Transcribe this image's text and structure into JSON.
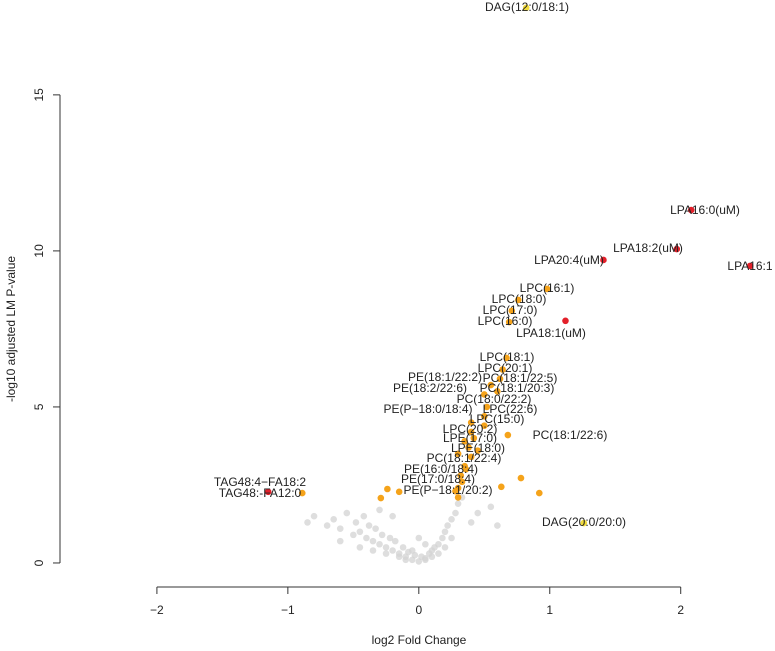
{
  "chart_data": {
    "type": "scatter",
    "xlabel": "log2 Fold Change",
    "ylabel": "-log10 adjusted LM P-value",
    "xlim": [
      -2.74,
      2.72
    ],
    "ylim": [
      -0.77,
      18.04
    ],
    "xticks": [
      {
        "value": -2,
        "label": "−2"
      },
      {
        "value": -1,
        "label": "−1"
      },
      0,
      1,
      2
    ],
    "yticks": [
      0,
      5,
      10,
      15
    ],
    "series": [
      {
        "color": "#d3d3d3",
        "x": [
          -0.85,
          -0.8,
          -0.7,
          -0.65,
          -0.6,
          -0.55,
          -0.5,
          -0.48,
          -0.45,
          -0.42,
          -0.4,
          -0.38,
          -0.35,
          -0.33,
          -0.3,
          -0.28,
          -0.25,
          -0.22,
          -0.2,
          -0.18,
          -0.15,
          -0.12,
          -0.1,
          -0.08,
          -0.05,
          -0.03,
          0,
          0.02,
          0.05,
          0.08,
          0.1,
          0.12,
          0.15,
          0.18,
          0.2,
          0.22,
          0.25,
          0.28,
          0.3,
          0.33,
          -0.6,
          -0.45,
          -0.35,
          -0.25,
          -0.15,
          -0.1,
          0.05,
          0.1,
          0.15,
          0.2,
          0.25,
          0.4,
          0.45,
          0.55,
          0.6,
          -0.3,
          -0.2,
          0,
          0.05,
          -0.05
        ],
        "values": [
          1.3,
          1.5,
          1.2,
          1.4,
          1.1,
          1.6,
          0.9,
          1.3,
          1.0,
          1.5,
          0.8,
          1.2,
          0.7,
          1.1,
          0.6,
          0.9,
          0.5,
          0.8,
          0.4,
          0.7,
          0.3,
          0.5,
          0.2,
          0.35,
          0.1,
          0.25,
          0.05,
          0.2,
          0.15,
          0.3,
          0.4,
          0.5,
          0.6,
          0.8,
          1.0,
          1.2,
          1.4,
          1.6,
          1.9,
          2.1,
          0.7,
          0.5,
          0.4,
          0.3,
          0.2,
          0.1,
          0.1,
          0.2,
          0.3,
          0.5,
          0.8,
          1.3,
          1.6,
          1.8,
          1.2,
          1.7,
          1.5,
          0.8,
          0.6,
          0.4
        ]
      },
      {
        "color": "#f5a31a",
        "x": [
          -0.89,
          0.98,
          0.76,
          0.71,
          0.69,
          0.67,
          0.64,
          0.62,
          0.55,
          0.6,
          0.5,
          0.52,
          0.4,
          0.5,
          0.5,
          0.4,
          0.68,
          0.35,
          0.45,
          0.4,
          0.35,
          0.32,
          0.3,
          -0.29,
          -0.24,
          -0.15,
          0.63,
          0.78,
          0.92,
          0.3,
          0.28,
          0.33,
          0.36,
          0.3,
          0.38,
          0.42
        ],
        "values": [
          2.24,
          8.78,
          8.43,
          8.08,
          7.72,
          6.57,
          6.2,
          5.9,
          5.7,
          5.5,
          5.4,
          5.0,
          4.5,
          4.7,
          4.4,
          4.2,
          4.1,
          3.9,
          3.6,
          3.4,
          3.1,
          2.8,
          2.4,
          2.08,
          2.37,
          2.28,
          2.44,
          2.72,
          2.24,
          2.1,
          2.3,
          2.6,
          3.0,
          3.5,
          3.7,
          4.0
        ],
        "labels": [
          "TAG48:-FA12:0",
          "LPC(16:1)",
          "LPC(18:0)",
          "LPC(17:0)",
          "LPC(16:0)",
          "LPC(18:1)",
          "LPC(20:1)",
          "PC(18:1/22:5)",
          "PE(18:1/22:2)",
          "PC(18:1/20:3)",
          "PE(18:2/22:6)",
          "PC(18:0/22:2)",
          "PE(P−18:0/18:4)",
          "LPC(22:6)",
          "LPC(15:0)",
          "LPC(20:2)",
          "PC(18:1/22:6)",
          "LPE(17:0)",
          "LPE(18:0)",
          "PC(18:1/22:4)",
          "PE(16:0/18:4)",
          "PE(17:0/18:4)",
          "PE(P−18:1/20:2)",
          null,
          null,
          null,
          null,
          null,
          null,
          null,
          null,
          null,
          null,
          null,
          null,
          null
        ]
      },
      {
        "color": "#f2dc3c",
        "x": [
          0.82,
          1.26
        ],
        "values": [
          17.79,
          1.28
        ],
        "labels": [
          "DAG(12:0/18:1)",
          "DAG(20:0/20:0)"
        ]
      },
      {
        "color": "#e3202a",
        "x": [
          2.08,
          1.97,
          1.41,
          2.53,
          1.12,
          -1.15
        ],
        "values": [
          11.31,
          10.06,
          9.71,
          9.52,
          7.76,
          2.28
        ],
        "labels": [
          "LPA16:0(uM)",
          "LPA18:2(uM)",
          "LPA20:4(uM)",
          "LPA16:1",
          "LPA18:1(uM)",
          "TAG48:4−FA18:2"
        ]
      }
    ]
  }
}
